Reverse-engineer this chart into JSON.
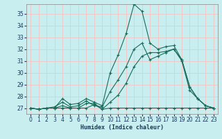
{
  "xlabel": "Humidex (Indice chaleur)",
  "bg_color": "#c8eef0",
  "grid_color": "#f0c8c8",
  "line_color": "#1a6b5a",
  "xlim": [
    -0.5,
    23.5
  ],
  "ylim": [
    26.5,
    35.8
  ],
  "xticks": [
    0,
    1,
    2,
    3,
    4,
    5,
    6,
    7,
    8,
    9,
    10,
    11,
    12,
    13,
    14,
    15,
    16,
    17,
    18,
    19,
    20,
    21,
    22,
    23
  ],
  "yticks": [
    27,
    28,
    29,
    30,
    31,
    32,
    33,
    34,
    35
  ],
  "line_min": [
    27,
    26.9,
    27,
    27,
    27,
    27,
    27,
    27,
    27.3,
    26.9,
    27,
    27,
    27,
    27,
    27,
    27,
    27,
    27,
    27,
    27,
    27,
    27,
    27,
    27
  ],
  "line_max": [
    27,
    26.9,
    27,
    27,
    27.8,
    27.3,
    27.4,
    27.8,
    27.5,
    27.2,
    30,
    31.5,
    33.3,
    35.8,
    35.2,
    32.5,
    32.0,
    32.2,
    32.3,
    31.1,
    28.8,
    27.8,
    27.2,
    27
  ],
  "line_p10": [
    27,
    26.9,
    27,
    27.1,
    27.5,
    27.1,
    27.2,
    27.6,
    27.2,
    27.1,
    28.4,
    29.4,
    30.5,
    32.0,
    32.5,
    31.1,
    31.4,
    31.7,
    32.0,
    31.1,
    28.8,
    27.8,
    27.2,
    27
  ],
  "line_p90": [
    27,
    26.9,
    27,
    27,
    27.2,
    27,
    27,
    27.4,
    27.4,
    26.9,
    27.5,
    28.1,
    29.1,
    30.5,
    31.4,
    31.7,
    31.7,
    31.8,
    32.0,
    31.0,
    28.5,
    27.8,
    27.2,
    27
  ]
}
